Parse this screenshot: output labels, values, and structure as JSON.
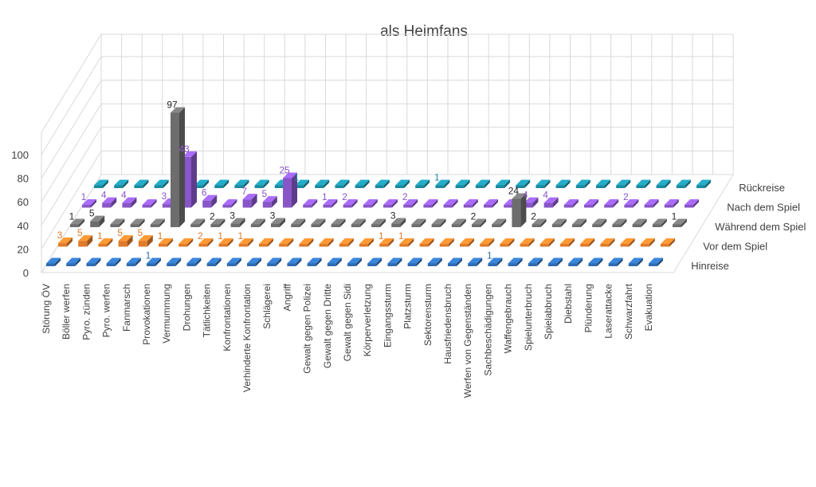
{
  "chart_data": {
    "type": "bar",
    "title": "als Heimfans",
    "categories": [
      "Störung ÖV",
      "Böller werfen",
      "Pyro. zünden",
      "Pyro. werfen",
      "Fanmarsch",
      "Provokationen",
      "Vermummung",
      "Drohungen",
      "Tätlichkeiten",
      "Konfrontationen",
      "Verhinderte Konfrontation",
      "Schlägerei",
      "Angriff",
      "Gewalt gegen Polizei",
      "Gewalt gegen Dritte",
      "Gewalt gegen Sidi",
      "Körperverletzung",
      "Eingangssturm",
      "Platzsturm",
      "Sektorensturm",
      "Hausfriedensbruch",
      "Werfen von Gegenständen",
      "Sachbeschädigungen",
      "Waffengebrauch",
      "Spielunterbruch",
      "Spielabbruch",
      "Diebstahl",
      "Plünderung",
      "Laserattacke",
      "Schwarzfahrt",
      "Evakuation"
    ],
    "series": [
      {
        "name": "Hinreise",
        "color": "#2e6bb0",
        "values": [
          0,
          0,
          0,
          0,
          0,
          1,
          0,
          0,
          0,
          0,
          0,
          0,
          0,
          0,
          0,
          0,
          0,
          0,
          0,
          0,
          0,
          0,
          1,
          0,
          0,
          0,
          0,
          0,
          0,
          0,
          0
        ]
      },
      {
        "name": "Vor dem Spiel",
        "color": "#e07b2a",
        "values": [
          3,
          5,
          1,
          5,
          5,
          1,
          0,
          2,
          1,
          1,
          0,
          0,
          0,
          0,
          0,
          0,
          1,
          1,
          0,
          0,
          0,
          0,
          0,
          0,
          0,
          0,
          0,
          0,
          0,
          0,
          0
        ]
      },
      {
        "name": "Während dem Spiel",
        "color": "#6d6d6d",
        "values": [
          1,
          5,
          0,
          0,
          0,
          97,
          0,
          2,
          3,
          0,
          3,
          0,
          0,
          0,
          0,
          0,
          3,
          0,
          0,
          0,
          2,
          0,
          24,
          2,
          0,
          0,
          0,
          0,
          0,
          0,
          1
        ]
      },
      {
        "name": "Nach dem Spiel",
        "color": "#8856c7",
        "values": [
          1,
          4,
          4,
          0,
          3,
          43,
          6,
          0,
          7,
          5,
          25,
          0,
          1,
          2,
          0,
          0,
          2,
          0,
          0,
          0,
          0,
          0,
          4,
          4,
          0,
          0,
          0,
          2,
          0,
          0,
          0
        ]
      },
      {
        "name": "Rückreise",
        "color": "#1d8aa0",
        "values": [
          0,
          0,
          0,
          0,
          0,
          0,
          0,
          0,
          0,
          0,
          1,
          0,
          0,
          0,
          0,
          0,
          0,
          1,
          0,
          0,
          0,
          0,
          0,
          0,
          0,
          0,
          0,
          0,
          0,
          0,
          0
        ]
      }
    ],
    "yticks": [
      0,
      20,
      40,
      60,
      80,
      100
    ],
    "ylim": [
      0,
      100
    ],
    "grid": true,
    "legend": "right"
  }
}
